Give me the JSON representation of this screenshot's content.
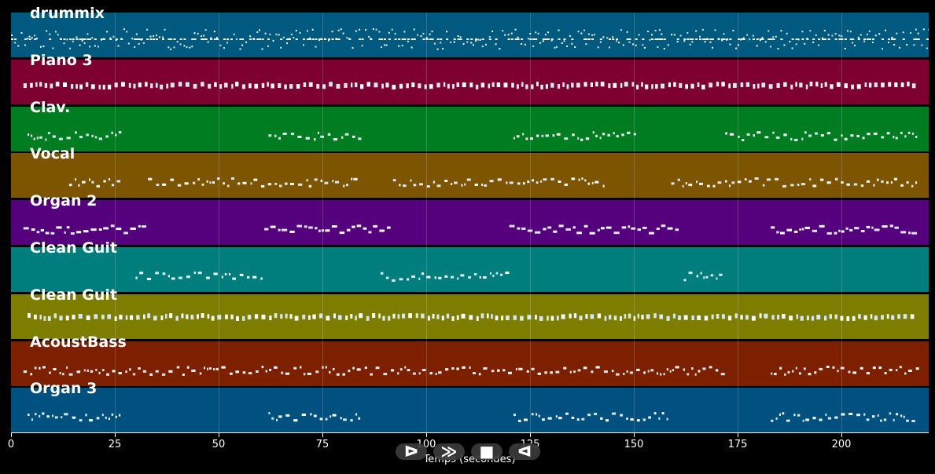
{
  "tracks": [
    {
      "name": "drummix",
      "color": "#005a80"
    },
    {
      "name": "Piano 3",
      "color": "#7d0030"
    },
    {
      "name": "Clav.",
      "color": "#007d20"
    },
    {
      "name": "Vocal",
      "color": "#7d5500"
    },
    {
      "name": "Organ 2",
      "color": "#55007d"
    },
    {
      "name": "Clean Guit",
      "color": "#007d7d"
    },
    {
      "name": "Clean Guit",
      "color": "#7d7d00"
    },
    {
      "name": "AcoustBass",
      "color": "#7d2000"
    },
    {
      "name": "Organ 3",
      "color": "#005080"
    }
  ],
  "axis": {
    "xlabel": "Temps (secondes)",
    "ticks": [
      "0",
      "25",
      "50",
      "75",
      "100",
      "125",
      "150",
      "175",
      "200"
    ]
  },
  "controls": {
    "play": "ᐅ",
    "forward": "≫",
    "stop": "■",
    "back": "ᐊ"
  },
  "chart_data": {
    "type": "scatter",
    "xlabel": "Temps (secondes)",
    "xlim": [
      0,
      221
    ],
    "x_ticks": [
      0,
      25,
      50,
      75,
      100,
      125,
      150,
      175,
      200
    ],
    "note_regions": [
      {
        "track": "drummix",
        "segments": [
          [
            0,
            221
          ]
        ]
      },
      {
        "track": "Piano 3",
        "segments": [
          [
            3,
            218
          ]
        ]
      },
      {
        "track": "Clav.",
        "segments": [
          [
            4,
            26
          ],
          [
            62,
            84
          ],
          [
            121,
            151
          ],
          [
            172,
            218
          ]
        ]
      },
      {
        "track": "Vocal",
        "segments": [
          [
            14,
            26
          ],
          [
            33,
            84
          ],
          [
            92,
            143
          ],
          [
            159,
            218
          ]
        ]
      },
      {
        "track": "Organ 2",
        "segments": [
          [
            3,
            32
          ],
          [
            61,
            91
          ],
          [
            120,
            160
          ],
          [
            183,
            218
          ]
        ]
      },
      {
        "track": "Clean Guit",
        "segments": [
          [
            30,
            61
          ],
          [
            89,
            120
          ],
          [
            162,
            172
          ]
        ]
      },
      {
        "track": "Clean Guit",
        "segments": [
          [
            4,
            218
          ]
        ]
      },
      {
        "track": "AcoustBass",
        "segments": [
          [
            3,
            172
          ],
          [
            183,
            218
          ]
        ]
      },
      {
        "track": "Organ 3",
        "segments": [
          [
            4,
            26
          ],
          [
            62,
            84
          ],
          [
            121,
            158
          ],
          [
            183,
            218
          ]
        ]
      }
    ]
  }
}
